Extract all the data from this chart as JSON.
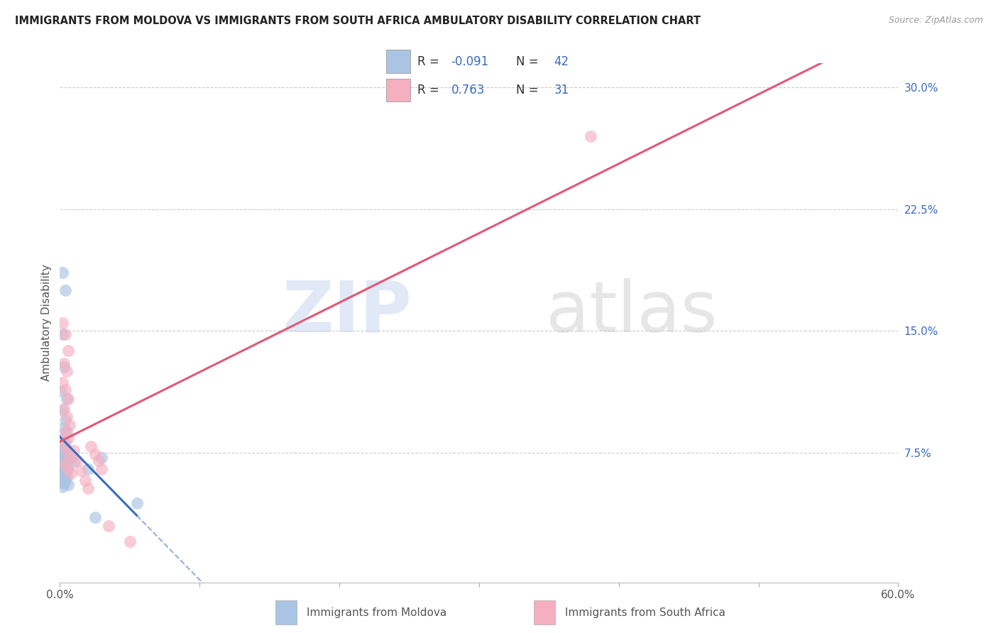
{
  "title": "IMMIGRANTS FROM MOLDOVA VS IMMIGRANTS FROM SOUTH AFRICA AMBULATORY DISABILITY CORRELATION CHART",
  "source": "Source: ZipAtlas.com",
  "ylabel": "Ambulatory Disability",
  "xlim": [
    0.0,
    0.6
  ],
  "ylim": [
    -0.005,
    0.315
  ],
  "yticks": [
    0.075,
    0.15,
    0.225,
    0.3
  ],
  "ytick_labels": [
    "7.5%",
    "15.0%",
    "22.5%",
    "30.0%"
  ],
  "xticks": [
    0.0,
    0.1,
    0.2,
    0.3,
    0.4,
    0.5,
    0.6
  ],
  "xtick_labels": [
    "0.0%",
    "",
    "",
    "",
    "",
    "",
    "60.0%"
  ],
  "legend_R_moldova": "-0.091",
  "legend_N_moldova": "42",
  "legend_R_sa": "0.763",
  "legend_N_sa": "31",
  "moldova_color": "#aac4e4",
  "sa_color": "#f5afc0",
  "moldova_line_color": "#3a6bbf",
  "sa_line_color": "#e05878",
  "moldova_points": [
    [
      0.002,
      0.186
    ],
    [
      0.004,
      0.175
    ],
    [
      0.002,
      0.148
    ],
    [
      0.003,
      0.128
    ],
    [
      0.001,
      0.113
    ],
    [
      0.005,
      0.108
    ],
    [
      0.002,
      0.101
    ],
    [
      0.004,
      0.095
    ],
    [
      0.003,
      0.09
    ],
    [
      0.005,
      0.088
    ],
    [
      0.002,
      0.083
    ],
    [
      0.004,
      0.082
    ],
    [
      0.001,
      0.079
    ],
    [
      0.003,
      0.078
    ],
    [
      0.005,
      0.077
    ],
    [
      0.002,
      0.076
    ],
    [
      0.004,
      0.074
    ],
    [
      0.001,
      0.072
    ],
    [
      0.003,
      0.071
    ],
    [
      0.005,
      0.07
    ],
    [
      0.002,
      0.069
    ],
    [
      0.004,
      0.068
    ],
    [
      0.001,
      0.067
    ],
    [
      0.003,
      0.066
    ],
    [
      0.005,
      0.065
    ],
    [
      0.002,
      0.064
    ],
    [
      0.004,
      0.063
    ],
    [
      0.001,
      0.062
    ],
    [
      0.003,
      0.061
    ],
    [
      0.005,
      0.06
    ],
    [
      0.002,
      0.059
    ],
    [
      0.004,
      0.058
    ],
    [
      0.001,
      0.057
    ],
    [
      0.003,
      0.056
    ],
    [
      0.006,
      0.055
    ],
    [
      0.002,
      0.054
    ],
    [
      0.008,
      0.071
    ],
    [
      0.01,
      0.069
    ],
    [
      0.02,
      0.065
    ],
    [
      0.03,
      0.072
    ],
    [
      0.055,
      0.044
    ],
    [
      0.025,
      0.035
    ]
  ],
  "sa_points": [
    [
      0.002,
      0.155
    ],
    [
      0.004,
      0.148
    ],
    [
      0.006,
      0.138
    ],
    [
      0.003,
      0.13
    ],
    [
      0.005,
      0.125
    ],
    [
      0.002,
      0.118
    ],
    [
      0.004,
      0.114
    ],
    [
      0.006,
      0.108
    ],
    [
      0.003,
      0.102
    ],
    [
      0.005,
      0.097
    ],
    [
      0.007,
      0.092
    ],
    [
      0.004,
      0.088
    ],
    [
      0.006,
      0.084
    ],
    [
      0.003,
      0.08
    ],
    [
      0.005,
      0.076
    ],
    [
      0.007,
      0.072
    ],
    [
      0.004,
      0.068
    ],
    [
      0.006,
      0.065
    ],
    [
      0.008,
      0.062
    ],
    [
      0.01,
      0.076
    ],
    [
      0.012,
      0.07
    ],
    [
      0.015,
      0.064
    ],
    [
      0.018,
      0.058
    ],
    [
      0.02,
      0.053
    ],
    [
      0.022,
      0.079
    ],
    [
      0.025,
      0.074
    ],
    [
      0.028,
      0.07
    ],
    [
      0.03,
      0.065
    ],
    [
      0.035,
      0.03
    ],
    [
      0.05,
      0.02
    ],
    [
      0.38,
      0.27
    ]
  ],
  "watermark_zip": "ZIP",
  "watermark_atlas": "atlas",
  "background_color": "#ffffff",
  "grid_color": "#cccccc",
  "legend_label_moldova": "Immigrants from Moldova",
  "legend_label_sa": "Immigrants from South Africa"
}
